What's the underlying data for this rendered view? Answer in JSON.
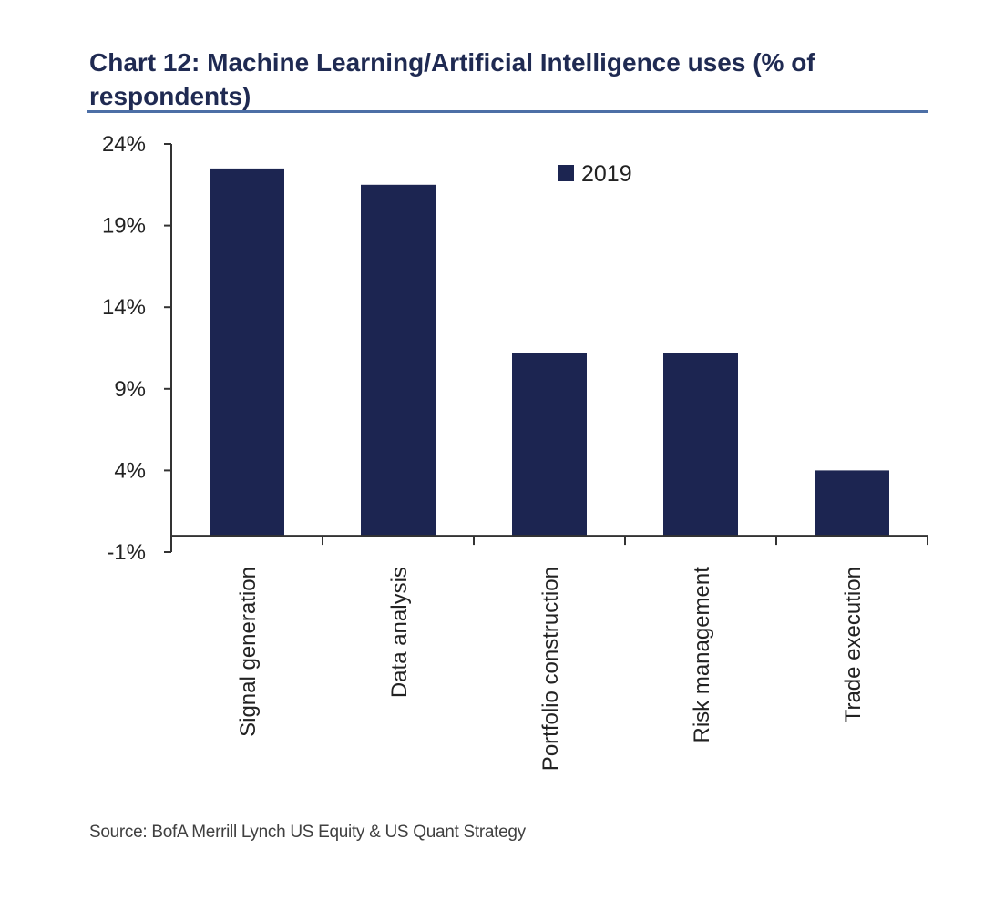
{
  "title": "Chart 12: Machine Learning/Artificial Intelligence uses (% of respondents)",
  "source": "Source: BofA Merrill Lynch US Equity & US Quant Strategy",
  "colors": {
    "bar": "#1c2551",
    "axis": "#333333",
    "title": "#1f2a52",
    "rule": "#4d6fa6"
  },
  "chart_data": {
    "type": "bar",
    "categories": [
      "Signal generation",
      "Data analysis",
      "Portfolio construction",
      "Risk management",
      "Trade execution"
    ],
    "series": [
      {
        "name": "2019",
        "values": [
          22.5,
          21.5,
          11.2,
          11.2,
          4.0
        ]
      }
    ],
    "yticks": [
      "24%",
      "19%",
      "14%",
      "9%",
      "4%",
      "-1%"
    ],
    "ylim": [
      -1,
      24
    ],
    "xlabel": "",
    "ylabel": "",
    "grid": false,
    "legend": "top-right"
  }
}
